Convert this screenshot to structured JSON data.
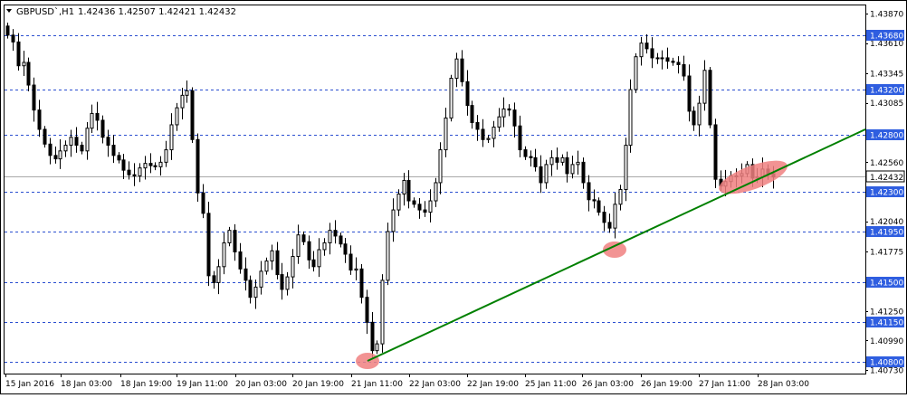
{
  "header": {
    "symbol": "GBPUSD`,H1",
    "ohlc": "1.42436 1.42507 1.42421 1.42432"
  },
  "colors": {
    "grid": "#2b4fd0",
    "axis": "#000000",
    "candle": "#000000",
    "trendline": "#008000",
    "highlight": "#f08080",
    "level_label_bg": "#2f5ee0",
    "level_label_text": "#ffffff",
    "price_line": "#a9a9a9"
  },
  "chart_data": {
    "type": "candlestick",
    "title": "GBPUSD`,H1",
    "x_ticks": [
      "15 Jan 2016",
      "18 Jan 03:00",
      "18 Jan 19:00",
      "19 Jan 11:00",
      "20 Jan 03:00",
      "20 Jan 19:00",
      "21 Jan 11:00",
      "22 Jan 03:00",
      "22 Jan 19:00",
      "25 Jan 11:00",
      "26 Jan 03:00",
      "26 Jan 19:00",
      "27 Jan 11:00",
      "28 Jan 03:00"
    ],
    "y_ticks": [
      "1.43870",
      "1.43610",
      "1.43345",
      "1.43085",
      "1.42820",
      "1.42560",
      "1.42300",
      "1.42040",
      "1.41775",
      "1.41515",
      "1.41250",
      "1.40990",
      "1.40730"
    ],
    "ylim": [
      1.4073,
      1.4387
    ],
    "levels": [
      "1.43680",
      "1.43200",
      "1.42800",
      "1.42300",
      "1.41950",
      "1.41500",
      "1.41150",
      "1.40800"
    ],
    "current_price": "1.42432",
    "closes": [
      1.4368,
      1.4362,
      1.4341,
      1.4344,
      1.4324,
      1.4302,
      1.4285,
      1.4272,
      1.4262,
      1.4259,
      1.4266,
      1.4271,
      1.4278,
      1.4271,
      1.4266,
      1.4286,
      1.4299,
      1.4293,
      1.4278,
      1.4271,
      1.4262,
      1.4258,
      1.4249,
      1.4245,
      1.4244,
      1.4251,
      1.4255,
      1.4253,
      1.4252,
      1.4256,
      1.4267,
      1.4289,
      1.4304,
      1.4315,
      1.4319,
      1.4276,
      1.4229,
      1.4211,
      1.4156,
      1.415,
      1.4164,
      1.4185,
      1.4196,
      1.4177,
      1.4162,
      1.4152,
      1.4137,
      1.4146,
      1.416,
      1.4169,
      1.4178,
      1.4157,
      1.4144,
      1.4155,
      1.4173,
      1.4192,
      1.4186,
      1.417,
      1.4164,
      1.4179,
      1.4185,
      1.4196,
      1.4191,
      1.4184,
      1.4175,
      1.4161,
      1.4162,
      1.4137,
      1.4115,
      1.409,
      1.4096,
      1.4152,
      1.4195,
      1.4214,
      1.4228,
      1.424,
      1.4222,
      1.4219,
      1.4214,
      1.4212,
      1.4222,
      1.4238,
      1.4267,
      1.4295,
      1.433,
      1.4347,
      1.4327,
      1.4306,
      1.4291,
      1.4285,
      1.4276,
      1.4277,
      1.4287,
      1.4296,
      1.4303,
      1.4302,
      1.4288,
      1.4267,
      1.4261,
      1.426,
      1.4252,
      1.4238,
      1.4254,
      1.426,
      1.4256,
      1.426,
      1.4246,
      1.4254,
      1.4256,
      1.4238,
      1.4223,
      1.4222,
      1.4212,
      1.4203,
      1.4198,
      1.4219,
      1.4232,
      1.4271,
      1.432,
      1.4349,
      1.4361,
      1.4356,
      1.4348,
      1.4348,
      1.4348,
      1.4345,
      1.4344,
      1.4342,
      1.4332,
      1.4301,
      1.4289,
      1.4308,
      1.4337,
      1.4289,
      1.4241,
      1.4235,
      1.4239,
      1.4244,
      1.4244,
      1.4246,
      1.4254,
      1.4242,
      1.4243,
      1.425,
      1.4246,
      1.4243
    ]
  }
}
